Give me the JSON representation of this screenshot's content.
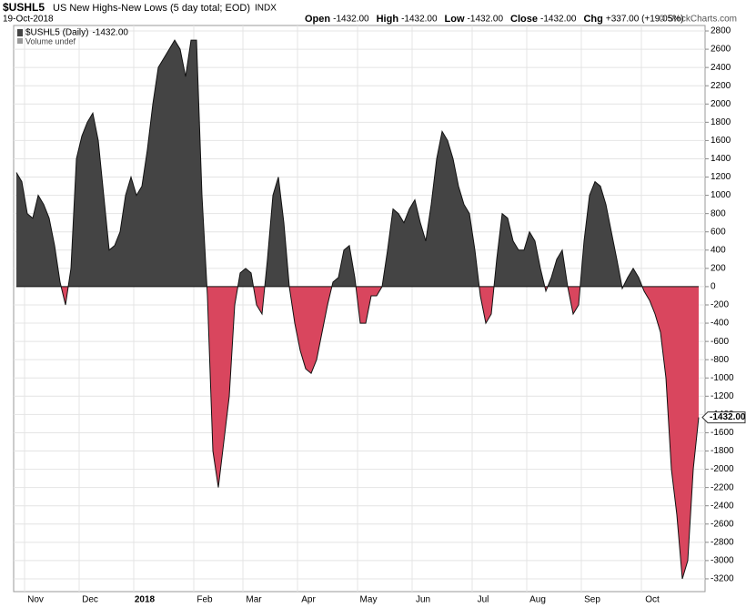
{
  "chart_data": {
    "type": "area",
    "title": "$USHL5",
    "subtitle": "US New Highs-New Lows (5 day total; EOD)",
    "exchange": "INDX",
    "date": "19-Oct-2018",
    "quote": [
      {
        "label": "Open",
        "value": "-1432.00"
      },
      {
        "label": "High",
        "value": "-1432.00"
      },
      {
        "label": "Low",
        "value": "-1432.00"
      },
      {
        "label": "Close",
        "value": "-1432.00"
      },
      {
        "label": "Chg",
        "value": "+337.00 (+19.05%)"
      }
    ],
    "watermark": "© StockCharts.com",
    "volume_note": "Volume undef",
    "categories": [
      null,
      null,
      "Nov",
      null,
      null,
      null,
      null,
      null,
      null,
      null,
      null,
      null,
      "Dec",
      null,
      null,
      null,
      null,
      null,
      null,
      null,
      null,
      null,
      "2018",
      null,
      null,
      null,
      null,
      null,
      null,
      null,
      null,
      null,
      null,
      "Feb",
      null,
      null,
      null,
      null,
      null,
      null,
      null,
      null,
      "Mar",
      null,
      null,
      null,
      null,
      null,
      null,
      null,
      null,
      null,
      "Apr",
      null,
      null,
      null,
      null,
      null,
      null,
      null,
      null,
      null,
      null,
      "May",
      null,
      null,
      null,
      null,
      null,
      null,
      null,
      null,
      null,
      "Jun",
      null,
      null,
      null,
      null,
      null,
      null,
      null,
      null,
      null,
      null,
      "Jul",
      null,
      null,
      null,
      null,
      null,
      null,
      null,
      null,
      null,
      "Aug",
      null,
      null,
      null,
      null,
      null,
      null,
      null,
      null,
      null,
      "Sep",
      null,
      null,
      null,
      null,
      null,
      null,
      null,
      null,
      null,
      null,
      "Oct",
      null,
      null,
      null,
      null,
      null,
      null,
      null,
      null,
      null,
      null
    ],
    "series": [
      {
        "name": "$USHL5 (Daily)",
        "color": "#444444",
        "negative_color": "#d9465e",
        "last_label": "-1432.00",
        "values": [
          1250,
          1150,
          800,
          750,
          1000,
          900,
          750,
          450,
          50,
          -200,
          200,
          1400,
          1650,
          1800,
          1900,
          1600,
          1000,
          400,
          450,
          600,
          1000,
          1200,
          1000,
          1100,
          1500,
          2000,
          2400,
          2500,
          2600,
          2700,
          2600,
          2300,
          2700,
          2700,
          1000,
          -100,
          -1800,
          -2200,
          -1700,
          -1200,
          -200,
          150,
          200,
          150,
          -200,
          -300,
          300,
          1000,
          1200,
          700,
          0,
          -400,
          -700,
          -900,
          -950,
          -800,
          -500,
          -200,
          50,
          100,
          400,
          450,
          100,
          -400,
          -400,
          -100,
          -100,
          0,
          400,
          850,
          800,
          700,
          850,
          950,
          700,
          500,
          900,
          1400,
          1700,
          1600,
          1400,
          1100,
          900,
          800,
          400,
          -100,
          -400,
          -300,
          300,
          800,
          750,
          500,
          400,
          400,
          600,
          500,
          200,
          -50,
          100,
          300,
          400,
          0,
          -300,
          -200,
          500,
          1000,
          1150,
          1100,
          900,
          600,
          300,
          -20,
          100,
          200,
          100,
          -50,
          -150,
          -300,
          -500,
          -1000,
          -2000,
          -2500,
          -3200,
          -3000,
          -2000,
          -1432
        ]
      }
    ],
    "ylim": [
      -3340,
      2860
    ],
    "yticks": [
      2800,
      2600,
      2400,
      2200,
      2000,
      1800,
      1600,
      1400,
      1200,
      1000,
      800,
      600,
      400,
      200,
      0,
      -200,
      -400,
      -600,
      -800,
      -1000,
      -1200,
      -1400,
      -1600,
      -1800,
      -2000,
      -2200,
      -2400,
      -2600,
      -2800,
      -3000,
      -3200
    ],
    "grid": true
  }
}
